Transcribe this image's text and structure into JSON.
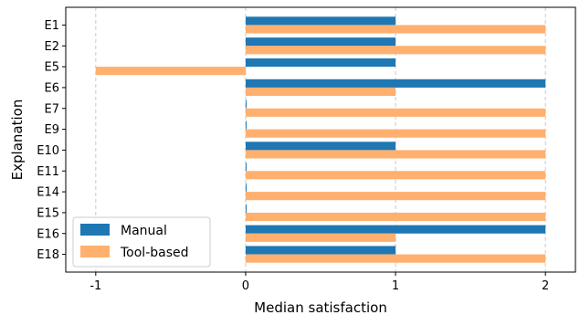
{
  "chart_data": {
    "type": "bar",
    "orientation": "horizontal",
    "categories": [
      "E1",
      "E2",
      "E5",
      "E6",
      "E7",
      "E9",
      "E10",
      "E11",
      "E14",
      "E15",
      "E16",
      "E18"
    ],
    "series": [
      {
        "name": "Manual",
        "color": "#1f77b4",
        "values": [
          1,
          1,
          1,
          2,
          0,
          0,
          1,
          0,
          0,
          0,
          2,
          1
        ]
      },
      {
        "name": "Tool-based",
        "color": "#ffb06f",
        "values": [
          2,
          2,
          -1,
          1,
          2,
          2,
          2,
          2,
          2,
          2,
          1,
          2
        ]
      }
    ],
    "xlabel": "Median satisfaction",
    "ylabel": "Explanation",
    "xlim": [
      -1.2,
      2.2
    ],
    "xticks": [
      -1,
      0,
      1,
      2
    ],
    "xtick_labels": [
      "-1",
      "0",
      "1",
      "2"
    ],
    "grid": "x-dashed",
    "legend_position": "lower-left"
  }
}
